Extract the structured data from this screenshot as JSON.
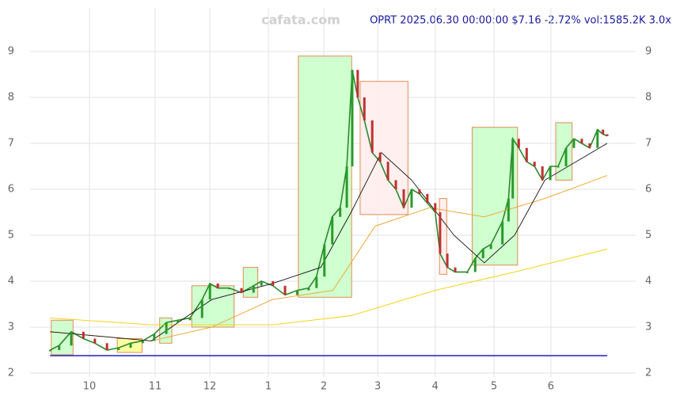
{
  "chart_data": {
    "type": "line",
    "title": "OPRT 2025.06.30 00:00:00 $7.16 -2.72% vol:1585.2K 3.0x",
    "watermark": "cafata.com",
    "xlim": [
      0,
      100
    ],
    "xticks": [
      {
        "value": 9.8,
        "label": "10"
      },
      {
        "value": 20.65,
        "label": "11"
      },
      {
        "value": 29.67,
        "label": "12"
      },
      {
        "value": 39.35,
        "label": "1"
      },
      {
        "value": 48.5,
        "label": "2"
      },
      {
        "value": 57.4,
        "label": "3"
      },
      {
        "value": 66.9,
        "label": "4"
      },
      {
        "value": 76.6,
        "label": "5"
      },
      {
        "value": 86.0,
        "label": "6"
      }
    ],
    "ylim": [
      2,
      9
    ],
    "yticks": [
      2,
      3,
      4,
      5,
      6,
      7,
      8,
      9
    ],
    "grid": true,
    "series": [
      {
        "name": "close",
        "color": "#2a8a2a",
        "x": [
          3.3,
          4.8,
          6.8,
          8.8,
          10.7,
          12.7,
          14.6,
          16.6,
          18.6,
          20.5,
          22.5,
          24.4,
          26.4,
          28.4,
          29.7,
          31.0,
          32.9,
          34.9,
          36.9,
          38.2,
          40.1,
          42.1,
          44.1,
          46.0,
          47.3,
          48.6,
          49.9,
          51.2,
          52.3,
          53.2,
          54.1,
          55.2,
          56.5,
          57.8,
          59.1,
          60.4,
          61.7,
          63.0,
          64.3,
          65.6,
          66.9,
          67.7,
          68.9,
          70.2,
          72.2,
          73.5,
          74.8,
          76.1,
          78.0,
          79.0,
          79.7,
          80.7,
          82.0,
          83.3,
          84.6,
          85.9,
          87.2,
          88.5,
          89.8,
          91.1,
          92.4,
          93.7,
          94.6,
          95.3
        ],
        "values": [
          2.5,
          2.6,
          2.9,
          2.75,
          2.65,
          2.5,
          2.55,
          2.65,
          2.7,
          2.85,
          3.1,
          3.15,
          3.2,
          3.6,
          3.95,
          3.85,
          3.85,
          3.75,
          3.9,
          4.0,
          3.9,
          3.7,
          3.8,
          3.85,
          4.1,
          4.8,
          5.4,
          5.6,
          6.5,
          8.6,
          8.0,
          7.5,
          6.8,
          6.6,
          6.2,
          6.0,
          5.6,
          6.0,
          5.9,
          5.7,
          5.5,
          4.6,
          4.3,
          4.2,
          4.2,
          4.5,
          4.7,
          4.8,
          5.3,
          5.8,
          7.1,
          6.9,
          6.6,
          6.5,
          6.2,
          6.5,
          6.5,
          6.9,
          7.1,
          7.0,
          6.9,
          7.3,
          7.2,
          7.16
        ]
      },
      {
        "name": "ma-long",
        "color": "#f5d000",
        "x": [
          3.3,
          20,
          40,
          53,
          66.9,
          80,
          95.3
        ],
        "values": [
          3.2,
          3.05,
          3.05,
          3.25,
          3.8,
          4.2,
          4.7
        ]
      },
      {
        "name": "ma-mid",
        "color": "#f0a020",
        "x": [
          3.3,
          20,
          30,
          40,
          50,
          57,
          66,
          75,
          85,
          95.3
        ],
        "values": [
          2.9,
          2.7,
          3.0,
          3.6,
          3.8,
          5.2,
          5.6,
          5.4,
          5.8,
          6.3
        ]
      },
      {
        "name": "ma-short",
        "color": "#111111",
        "x": [
          3.3,
          20,
          30,
          40,
          48,
          53,
          58,
          63,
          70,
          75,
          80,
          85,
          95.3
        ],
        "values": [
          2.9,
          2.7,
          3.6,
          3.95,
          4.3,
          5.5,
          6.8,
          6.2,
          5.0,
          4.4,
          5.0,
          6.2,
          7.0
        ]
      }
    ],
    "boxes": [
      {
        "kind": "up",
        "x": [
          3.5,
          7.1
        ],
        "values": [
          2.4,
          3.15
        ]
      },
      {
        "kind": "flat",
        "x": [
          14.4,
          18.5
        ],
        "values": [
          2.45,
          2.75
        ]
      },
      {
        "kind": "up",
        "x": [
          21.4,
          23.4
        ],
        "values": [
          2.65,
          3.2
        ]
      },
      {
        "kind": "up",
        "x": [
          26.7,
          33.7
        ],
        "values": [
          3.0,
          3.9
        ]
      },
      {
        "kind": "up",
        "x": [
          35.2,
          37.6
        ],
        "values": [
          3.65,
          4.3
        ]
      },
      {
        "kind": "up",
        "x": [
          44.3,
          53.1
        ],
        "values": [
          3.65,
          8.9
        ]
      },
      {
        "kind": "down",
        "x": [
          54.5,
          62.4
        ],
        "values": [
          5.45,
          8.35
        ]
      },
      {
        "kind": "down",
        "x": [
          67.6,
          68.8
        ],
        "values": [
          4.15,
          5.8
        ]
      },
      {
        "kind": "up",
        "x": [
          73.0,
          80.5
        ],
        "values": [
          4.35,
          7.35
        ]
      },
      {
        "kind": "up",
        "x": [
          86.8,
          89.5
        ],
        "values": [
          6.2,
          7.45
        ]
      }
    ]
  }
}
